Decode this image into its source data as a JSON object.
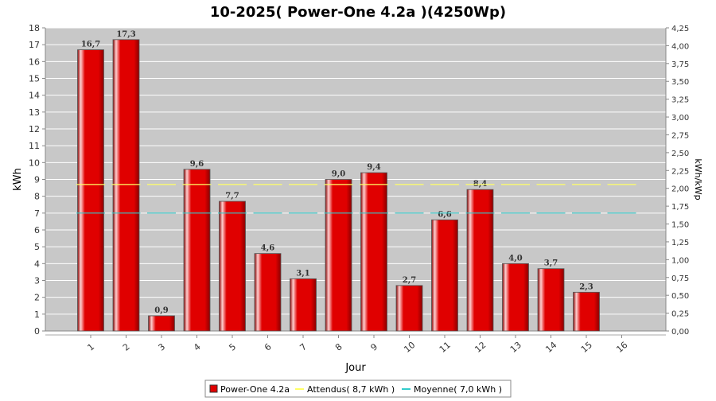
{
  "chart_data": {
    "type": "bar",
    "title": "10-2025( Power-One 4.2a )(4250Wp)",
    "xlabel": "Jour",
    "ylabel": "kWh",
    "y2label": "kWh/kWp",
    "categories": [
      "1",
      "2",
      "3",
      "4",
      "5",
      "6",
      "7",
      "8",
      "9",
      "10",
      "11",
      "12",
      "13",
      "14",
      "15",
      "16"
    ],
    "ylim": [
      0,
      18
    ],
    "y2lim": [
      0,
      4.25
    ],
    "yticks": [
      "0",
      "1",
      "2",
      "3",
      "4",
      "5",
      "6",
      "7",
      "8",
      "9",
      "10",
      "11",
      "12",
      "13",
      "14",
      "15",
      "16",
      "17",
      "18"
    ],
    "y2ticks": [
      "0,00",
      "0,25",
      "0,50",
      "0,75",
      "1,00",
      "1,25",
      "1,50",
      "1,75",
      "2,00",
      "2,25",
      "2,50",
      "2,75",
      "3,00",
      "3,25",
      "3,50",
      "3,75",
      "4,00",
      "4,25"
    ],
    "series": [
      {
        "name": "Power-One 4.2a",
        "values": [
          16.7,
          17.3,
          0.9,
          9.6,
          7.7,
          4.6,
          3.1,
          9.0,
          9.4,
          2.7,
          6.6,
          8.4,
          4.0,
          3.7,
          2.3,
          null
        ],
        "labels": [
          "16,7",
          "17,3",
          "0,9",
          "9,6",
          "7,7",
          "4,6",
          "3,1",
          "9,0",
          "9,4",
          "2,7",
          "6,6",
          "8,4",
          "4,0",
          "3,7",
          "2,3",
          ""
        ],
        "color": "#e00000"
      }
    ],
    "reference_lines": [
      {
        "name": "Attendus( 8,7 kWh )",
        "value": 8.7,
        "color": "#ffff66"
      },
      {
        "name": "Moyenne( 7,0 kWh )",
        "value": 7.0,
        "color": "#33cccc"
      }
    ],
    "grid": true,
    "legend_position": "bottom"
  },
  "colors": {
    "plot_background": "#c8c8c8",
    "bar": "#e00000",
    "bar_dark": "#8a0000",
    "bar_highlight": "#ffd0d0"
  }
}
